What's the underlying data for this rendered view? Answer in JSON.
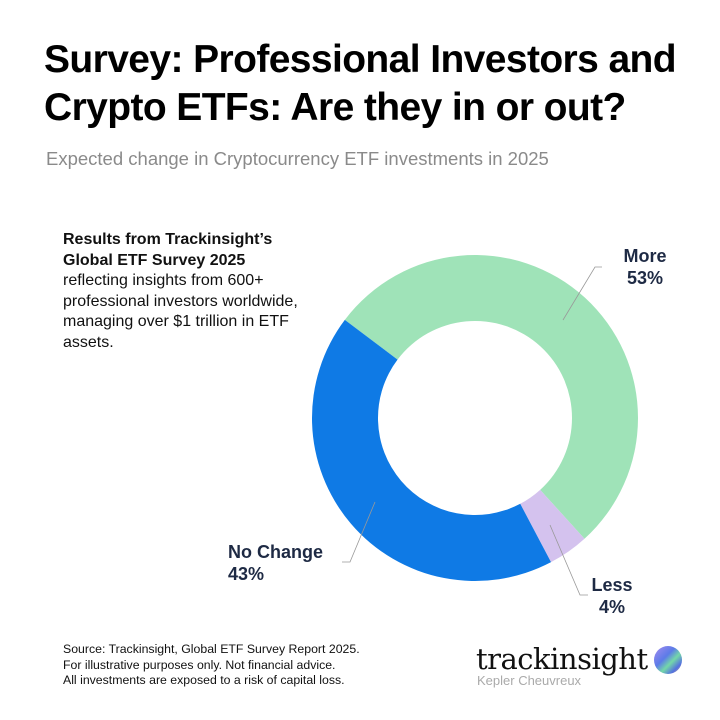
{
  "header": {
    "title": "Survey: Professional Investors and Crypto ETFs: Are they in or out?",
    "subtitle": "Expected change in Cryptocurrency ETF investments in 2025"
  },
  "description": {
    "bold": "Results from Trackinsight’s Global ETF Survey 2025",
    "text": "reflecting insights from 600+ professional investors worldwide, managing over $1 trillion in ETF assets."
  },
  "chart_data": {
    "type": "pie",
    "variant": "donut",
    "title": "Expected change in Cryptocurrency ETF investments in 2025",
    "slices": [
      {
        "label": "More",
        "value": 53,
        "display": "53%",
        "color": "#9fe3b8"
      },
      {
        "label": "Less",
        "value": 4,
        "display": "4%",
        "color": "#d4c2ee"
      },
      {
        "label": "No Change",
        "value": 43,
        "display": "43%",
        "color": "#0f7ae5"
      }
    ]
  },
  "footer": {
    "source_lines": [
      "Source: Trackinsight, Global ETF Survey Report 2025.",
      "For illustrative purposes only. Not financial advice.",
      "All investments are exposed to a risk of capital loss."
    ],
    "logo": {
      "name": "trackinsight",
      "sub": "Kepler Cheuvreux"
    }
  },
  "colors": {
    "label_text": "#1e2a44",
    "subtitle": "#8a8a8a"
  }
}
